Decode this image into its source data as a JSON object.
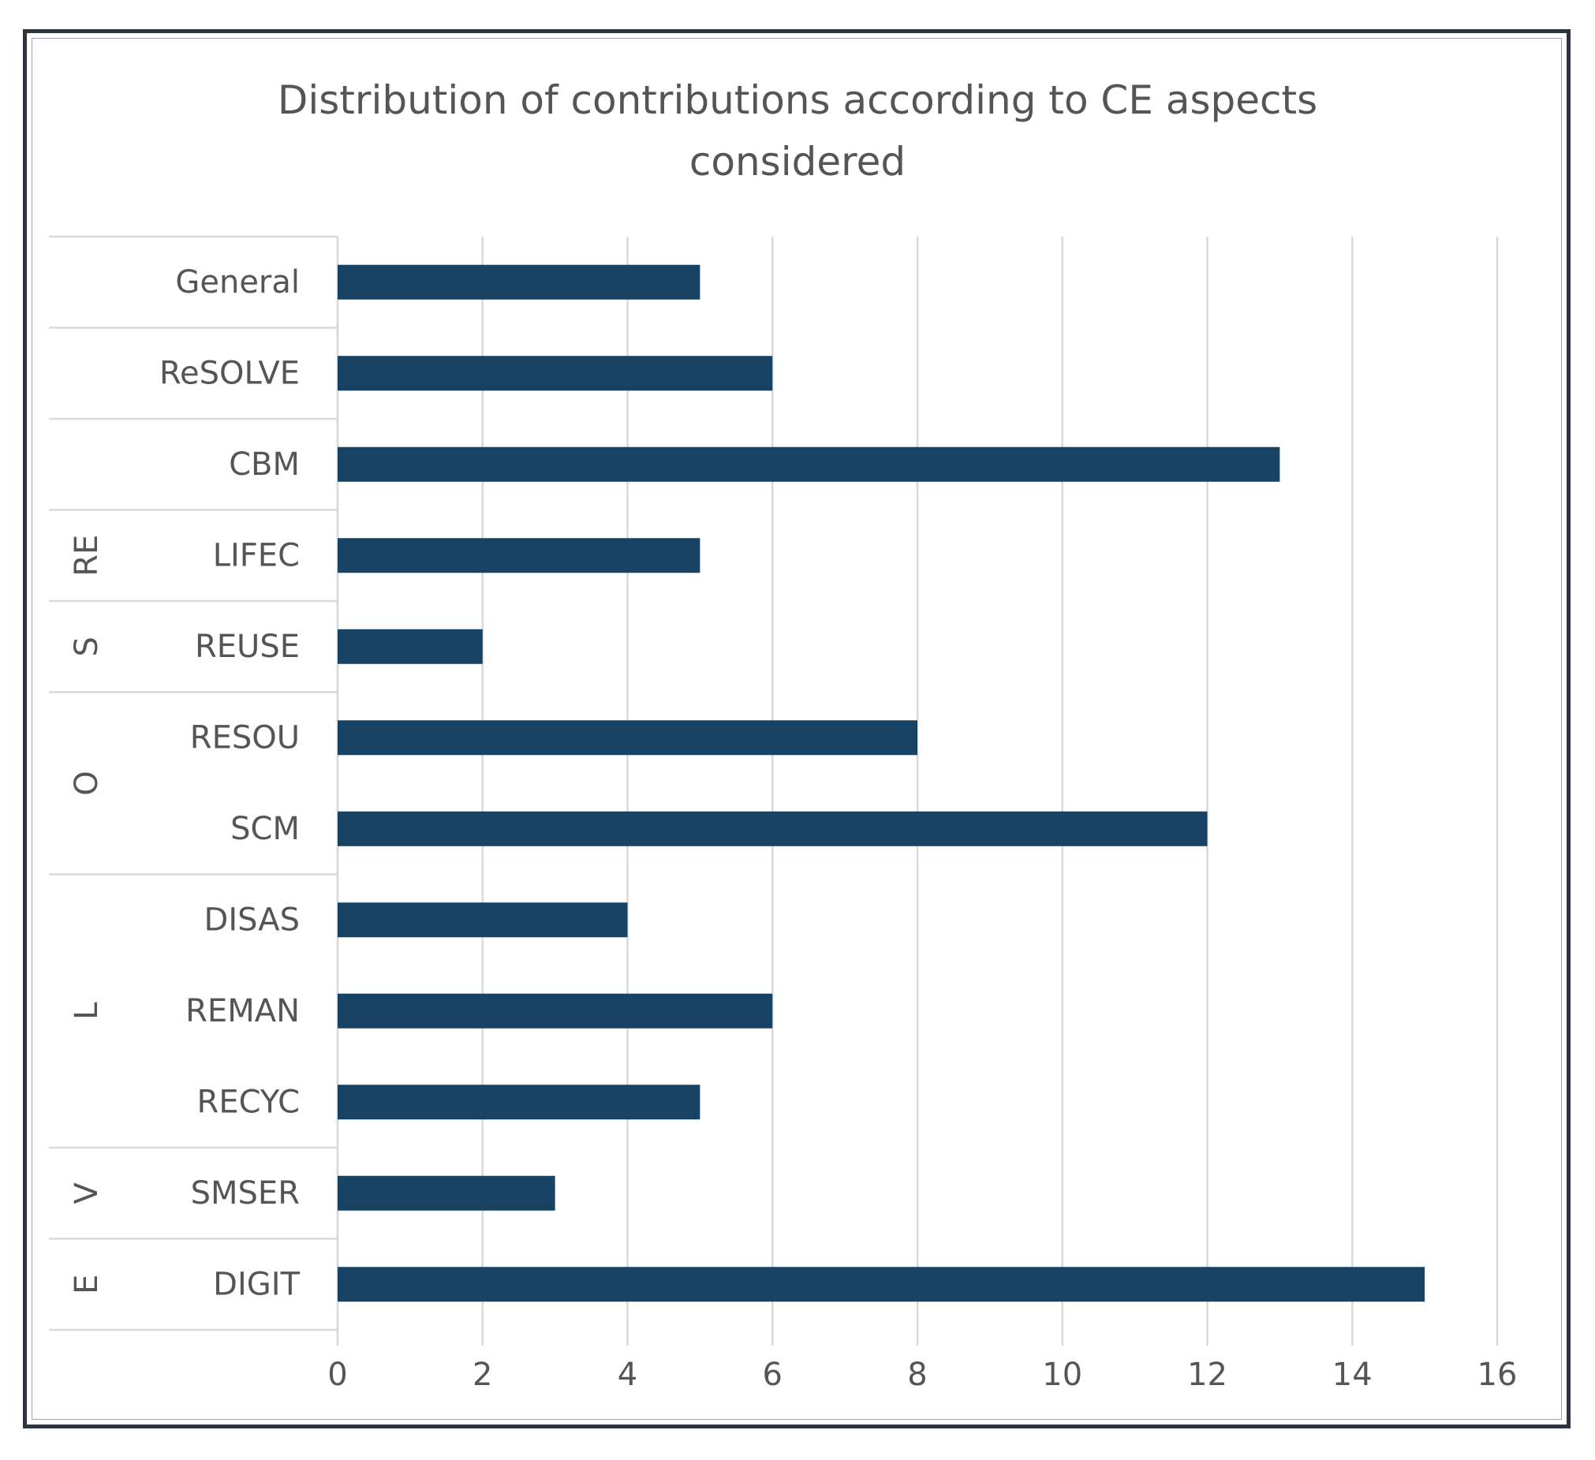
{
  "chart_data": {
    "type": "bar",
    "orientation": "horizontal",
    "title": [
      "Distribution of contributions according to CE aspects",
      "considered"
    ],
    "categories": [
      "General",
      "ReSOLVE",
      "CBM",
      "LIFEC",
      "REUSE",
      "RESOU",
      "SCM",
      "DISAS",
      "REMAN",
      "RECYC",
      "SMSER",
      "DIGIT"
    ],
    "values": [
      5,
      6,
      13,
      5,
      2,
      8,
      12,
      4,
      6,
      5,
      3,
      15
    ],
    "groups": [
      {
        "label": "",
        "categories": [
          "General"
        ]
      },
      {
        "label": "",
        "categories": [
          "ReSOLVE"
        ]
      },
      {
        "label": "",
        "categories": [
          "CBM"
        ]
      },
      {
        "label": "RE",
        "categories": [
          "LIFEC"
        ]
      },
      {
        "label": "S",
        "categories": [
          "REUSE"
        ]
      },
      {
        "label": "O",
        "categories": [
          "RESOU",
          "SCM"
        ]
      },
      {
        "label": "L",
        "categories": [
          "DISAS",
          "REMAN",
          "RECYC"
        ]
      },
      {
        "label": "V",
        "categories": [
          "SMSER"
        ]
      },
      {
        "label": "E",
        "categories": [
          "DIGIT"
        ]
      }
    ],
    "xlim": [
      0,
      16
    ],
    "xticks": [
      "0",
      "2",
      "4",
      "6",
      "8",
      "10",
      "12",
      "14",
      "16"
    ],
    "grid": "vertical",
    "bar_color": "#174263",
    "grid_color": "#d9d9d9",
    "xlabel": "",
    "ylabel": ""
  }
}
